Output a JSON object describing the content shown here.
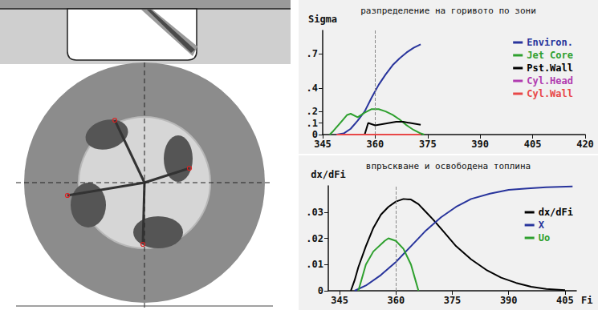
{
  "chart_data": [
    {
      "type": "line",
      "title": "разпределение на горивото по зони",
      "y_label": "Sigma",
      "xlim": [
        345,
        420
      ],
      "xticks": [
        345,
        360,
        375,
        390,
        405,
        420
      ],
      "ylim": [
        0,
        0.9
      ],
      "yticks": [
        0,
        {
          "value": 0.1,
          "label": ".1"
        },
        {
          "value": 0.2,
          "label": ".2"
        },
        {
          "value": 0.4,
          "label": ".4"
        },
        {
          "value": 0.7,
          "label": ".7"
        }
      ],
      "grid": false,
      "legend": "upper right",
      "reference_x": 360,
      "series": [
        {
          "name": "Environ.",
          "color": "#28349c",
          "x": [
            349,
            351,
            353,
            355,
            357,
            359,
            361,
            363,
            365,
            367,
            369,
            371,
            373
          ],
          "values": [
            0,
            0.01,
            0.05,
            0.12,
            0.2,
            0.32,
            0.43,
            0.52,
            0.6,
            0.66,
            0.71,
            0.75,
            0.78
          ]
        },
        {
          "name": "Jet Core",
          "color": "#2ea02e",
          "x": [
            347,
            348,
            350,
            352,
            353,
            355,
            357,
            359,
            361,
            363,
            365,
            367,
            369,
            371,
            373,
            374
          ],
          "values": [
            0,
            0.03,
            0.1,
            0.17,
            0.18,
            0.15,
            0.19,
            0.22,
            0.22,
            0.2,
            0.17,
            0.13,
            0.08,
            0.04,
            0.01,
            0
          ]
        },
        {
          "name": "Pst.Wall",
          "color": "#000000",
          "x": [
            357,
            358,
            359,
            360,
            362,
            364,
            366,
            368,
            370,
            372,
            373
          ],
          "values": [
            0,
            0.1,
            0.09,
            0.08,
            0.09,
            0.1,
            0.11,
            0.11,
            0.1,
            0.09,
            0.085
          ]
        },
        {
          "name": "Cyl.Head",
          "color": "#b03cb0",
          "x": [
            349,
            373
          ],
          "values": [
            0,
            0
          ]
        },
        {
          "name": "Cyl.Wall",
          "color": "#e84848",
          "x": [
            349,
            373
          ],
          "values": [
            0,
            0
          ]
        }
      ]
    },
    {
      "type": "line",
      "title": "впръскване и освободена топлина",
      "y_label": "dx/dFi",
      "x_label": "Fi",
      "xlim": [
        342,
        408
      ],
      "xticks": [
        345,
        360,
        375,
        390,
        405
      ],
      "ylim": [
        0,
        0.04
      ],
      "yticks": [
        0,
        {
          "value": 0.01,
          "label": ".01"
        },
        {
          "value": 0.02,
          "label": ".02"
        },
        {
          "value": 0.03,
          "label": ".03"
        }
      ],
      "grid": false,
      "legend": "right",
      "reference_x": 360,
      "series": [
        {
          "name": "dx/dFi",
          "color": "#000000",
          "x": [
            348,
            349,
            350,
            352,
            354,
            356,
            358,
            360,
            362,
            364,
            366,
            368,
            370,
            373,
            376,
            380,
            384,
            388,
            392,
            396,
            400,
            405
          ],
          "values": [
            0,
            0.004,
            0.009,
            0.017,
            0.024,
            0.029,
            0.032,
            0.034,
            0.035,
            0.0348,
            0.033,
            0.03,
            0.027,
            0.022,
            0.017,
            0.012,
            0.008,
            0.005,
            0.003,
            0.0015,
            0.0007,
            0.0002
          ]
        },
        {
          "name": "X",
          "color": "#28349c",
          "x": [
            349,
            352,
            356,
            360,
            364,
            368,
            372,
            376,
            380,
            385,
            390,
            395,
            400,
            407
          ],
          "values": [
            0,
            0.002,
            0.006,
            0.011,
            0.017,
            0.023,
            0.028,
            0.032,
            0.035,
            0.037,
            0.0385,
            0.039,
            0.0395,
            0.0398
          ]
        },
        {
          "name": "Uo",
          "color": "#2ea02e",
          "x": [
            350,
            352,
            354,
            357,
            358,
            360,
            362,
            364,
            365,
            366
          ],
          "values": [
            0,
            0.01,
            0.015,
            0.019,
            0.02,
            0.019,
            0.016,
            0.01,
            0.005,
            0
          ]
        }
      ]
    }
  ]
}
